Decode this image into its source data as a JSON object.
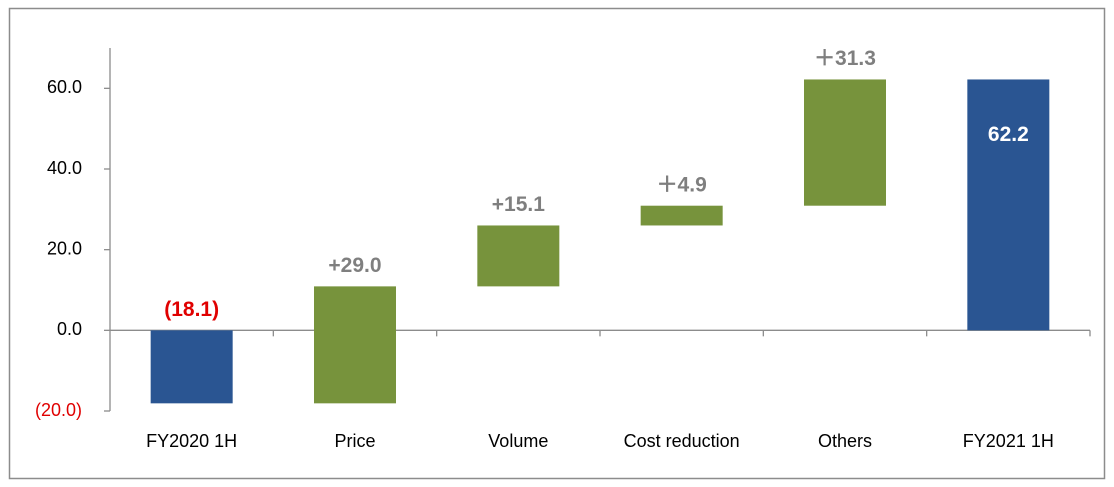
{
  "chart_data": {
    "type": "waterfall",
    "categories": [
      "FY2020 1H",
      "Price",
      "Volume",
      "Cost reduction",
      "Others",
      "FY2021 1H"
    ],
    "values": [
      -18.1,
      29.0,
      15.1,
      4.9,
      31.3,
      62.2
    ],
    "value_labels": [
      "(18.1)",
      "+29.0",
      "+15.1",
      "＋4.9",
      "＋31.3",
      "62.2"
    ],
    "total_color": "#2a5592",
    "increase_color": "#77933c",
    "ylim": [
      -20,
      70
    ],
    "yticks": [
      {
        "value": -20,
        "label": "(20.0)"
      },
      {
        "value": 0,
        "label": "0.0"
      },
      {
        "value": 20,
        "label": "20.0"
      },
      {
        "value": 40,
        "label": "40.0"
      },
      {
        "value": 60,
        "label": "60.0"
      }
    ],
    "grid": false
  }
}
